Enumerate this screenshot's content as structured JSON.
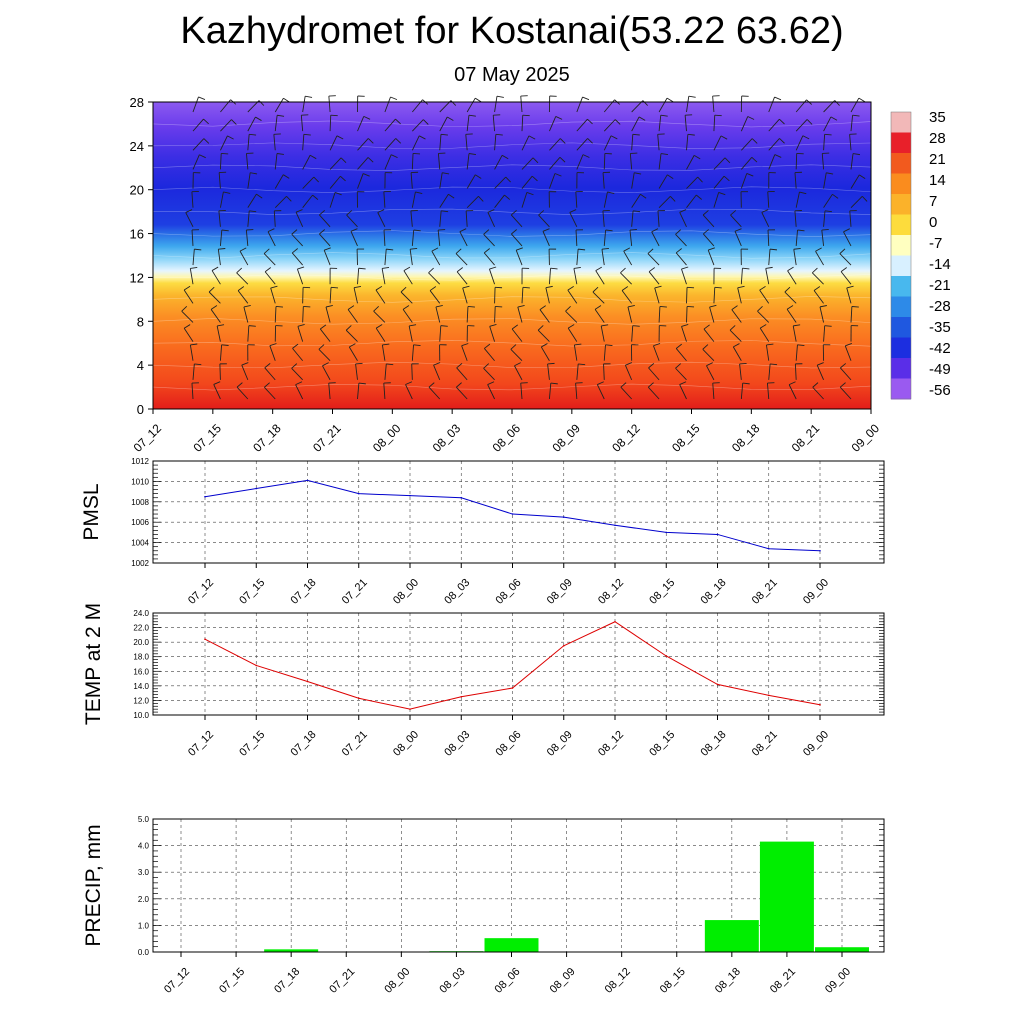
{
  "title": "Kazhydromet for Kostanai(53.22 63.62)",
  "subtitle": "07 May 2025",
  "chart_data": [
    {
      "type": "heatmap",
      "name": "temperature-cross-section",
      "x": [
        "07_12",
        "07_15",
        "07_18",
        "07_21",
        "08_00",
        "08_03",
        "08_06",
        "08_09",
        "08_12",
        "08_15",
        "08_18",
        "08_21",
        "09_00"
      ],
      "ylim": [
        0,
        28
      ],
      "yticks": [
        "0",
        "4",
        "8",
        "12",
        "16",
        "20",
        "24",
        "28"
      ],
      "colorbar_labels": [
        "35",
        "28",
        "21",
        "14",
        "7",
        "0",
        "-7",
        "-14",
        "-21",
        "-28",
        "-35",
        "-42",
        "-49",
        "-56"
      ],
      "colorbar_colors": [
        "#f2b8b8",
        "#e8202a",
        "#f25a1e",
        "#fa8c1e",
        "#fbb22a",
        "#fddc3c",
        "#ffffc0",
        "#d8f0ff",
        "#48b8ee",
        "#2d8ae8",
        "#1f58e0",
        "#1c2ee0",
        "#5a2ee8",
        "#9a5af0"
      ],
      "overlay": "wind barbs",
      "legend_position": "right"
    },
    {
      "type": "line",
      "ylabel": "PMSL",
      "x": [
        "07_12",
        "07_15",
        "07_18",
        "07_21",
        "08_00",
        "08_03",
        "08_06",
        "08_09",
        "08_12",
        "08_15",
        "08_18",
        "08_21",
        "09_00"
      ],
      "values": [
        1008.5,
        1009.3,
        1010.1,
        1008.8,
        1008.6,
        1008.4,
        1006.8,
        1006.5,
        1005.7,
        1005.0,
        1004.8,
        1003.4,
        1003.2
      ],
      "ylim": [
        1002,
        1012
      ],
      "yticks": [
        "1002",
        "1004",
        "1006",
        "1008",
        "1010",
        "1012"
      ],
      "color": "#0000cc",
      "grid": true
    },
    {
      "type": "line",
      "ylabel": "TEMP at 2 M",
      "x": [
        "07_12",
        "07_15",
        "07_18",
        "07_21",
        "08_00",
        "08_03",
        "08_06",
        "08_09",
        "08_12",
        "08_15",
        "08_18",
        "08_21",
        "09_00"
      ],
      "values": [
        20.4,
        16.8,
        14.6,
        12.3,
        10.8,
        12.5,
        13.7,
        19.5,
        22.8,
        18.1,
        14.2,
        12.7,
        11.4
      ],
      "ylim": [
        10,
        24
      ],
      "yticks": [
        "10.0",
        "12.0",
        "14.0",
        "16.0",
        "18.0",
        "20.0",
        "22.0",
        "24.0"
      ],
      "color": "#dd0000",
      "grid": true
    },
    {
      "type": "bar",
      "ylabel": "PRECIP, mm",
      "x": [
        "07_12",
        "07_15",
        "07_18",
        "07_21",
        "08_00",
        "08_03",
        "08_06",
        "08_09",
        "08_12",
        "08_15",
        "08_18",
        "08_21",
        "09_00"
      ],
      "values": [
        0,
        0,
        0.1,
        0,
        0,
        0.03,
        0.52,
        0,
        0,
        0,
        1.2,
        4.15,
        0.18
      ],
      "ylim": [
        0,
        5
      ],
      "yticks": [
        "0.0",
        "1.0",
        "2.0",
        "3.0",
        "4.0",
        "5.0"
      ],
      "color": "#00ee00",
      "grid": true
    }
  ]
}
